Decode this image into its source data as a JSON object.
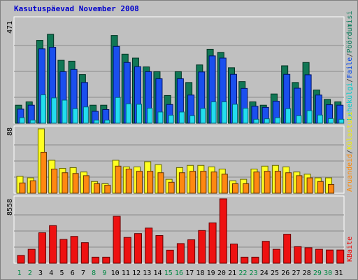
{
  "chart_data": [
    {
      "type": "bar",
      "title": "Kasutuspäevad November 2008",
      "ymax_label": "471",
      "ylim": [
        0,
        471
      ],
      "legend": [
        "Pöördumisi",
        "Faile",
        "Lehekülgi"
      ],
      "categories": [
        "1",
        "2",
        "3",
        "4",
        "5",
        "6",
        "7",
        "8",
        "9",
        "10",
        "11",
        "12",
        "13",
        "14",
        "15",
        "16",
        "17",
        "18",
        "19",
        "20",
        "21",
        "22",
        "23",
        "24",
        "25",
        "26",
        "27",
        "28",
        "29",
        "30",
        "31"
      ],
      "weekend_days": [
        "1",
        "2",
        "8",
        "9",
        "15",
        "16",
        "22",
        "23",
        "29",
        "30"
      ],
      "series": [
        {
          "name": "Pöördumisi",
          "values": [
            82,
            97,
            377,
            404,
            286,
            282,
            221,
            82,
            82,
            399,
            314,
            296,
            256,
            234,
            126,
            234,
            185,
            265,
            336,
            322,
            252,
            189,
            97,
            82,
            133,
            261,
            185,
            276,
            151,
            108,
            97
          ]
        },
        {
          "name": "Faile",
          "values": [
            64,
            82,
            338,
            345,
            234,
            244,
            185,
            54,
            62,
            349,
            276,
            257,
            234,
            202,
            85,
            202,
            128,
            233,
            306,
            296,
            222,
            158,
            77,
            72,
            100,
            222,
            159,
            220,
            128,
            84,
            82
          ]
        },
        {
          "name": "Lehekülgi",
          "values": [
            25,
            14,
            129,
            115,
            105,
            66,
            74,
            14,
            14,
            117,
            88,
            86,
            68,
            51,
            36,
            51,
            34,
            67,
            97,
            97,
            86,
            68,
            18,
            20,
            25,
            66,
            34,
            57,
            37,
            21,
            18
          ]
        }
      ]
    },
    {
      "type": "bar",
      "ymax_label": "88",
      "ylim": [
        0,
        88
      ],
      "legend": [
        "Külastusi",
        "Aruandeid"
      ],
      "series": [
        {
          "name": "Külastusi",
          "values": [
            23,
            21,
            88,
            45,
            34,
            35,
            29,
            16,
            13,
            45,
            36,
            36,
            43,
            39,
            19,
            35,
            38,
            38,
            36,
            33,
            17,
            19,
            33,
            37,
            38,
            36,
            29,
            26,
            21,
            21,
            0
          ]
        },
        {
          "name": "Aruandeid",
          "values": [
            14,
            17,
            56,
            33,
            28,
            27,
            24,
            13,
            11,
            37,
            33,
            30,
            30,
            28,
            15,
            28,
            30,
            30,
            29,
            26,
            13,
            13,
            29,
            30,
            30,
            28,
            24,
            21,
            16,
            12,
            0
          ]
        }
      ]
    },
    {
      "type": "bar",
      "ymax_label": "8558",
      "ylim": [
        0,
        8558
      ],
      "legend": [
        "KBaite"
      ],
      "series": [
        {
          "name": "KBaite",
          "values": [
            1034,
            1847,
            4046,
            4992,
            3161,
            3559,
            2731,
            802,
            802,
            6232,
            3424,
            3936,
            4668,
            3674,
            1732,
            2609,
            3112,
            4342,
            5364,
            8558,
            2544,
            802,
            802,
            2910,
            1847,
            3847,
            2200,
            2058,
            1847,
            1751,
            1751
          ]
        }
      ]
    }
  ]
}
